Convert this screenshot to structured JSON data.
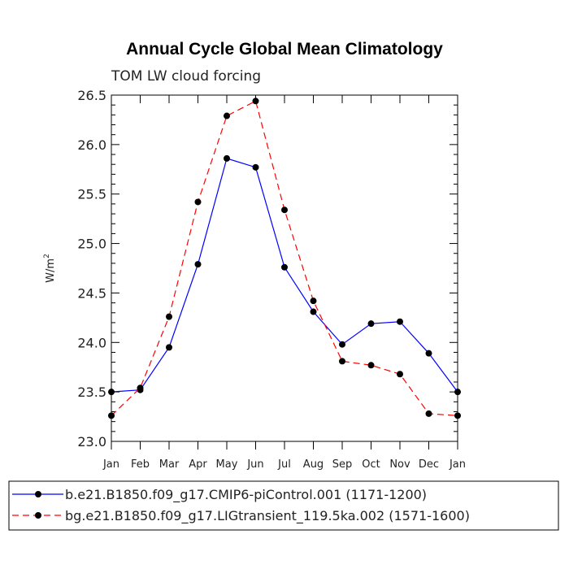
{
  "chart_data": {
    "type": "line",
    "title": "Annual Cycle Global Mean Climatology",
    "subtitle": "TOM LW cloud forcing",
    "ylabel": "W/m",
    "ylabel_superscript": "2",
    "xlabel": "",
    "categories": [
      "Jan",
      "Feb",
      "Mar",
      "Apr",
      "May",
      "Jun",
      "Jul",
      "Aug",
      "Sep",
      "Oct",
      "Nov",
      "Dec",
      "Jan"
    ],
    "ylim": [
      23.0,
      26.5
    ],
    "yticks": [
      "23.0",
      "23.5",
      "24.0",
      "24.5",
      "25.0",
      "25.5",
      "26.0",
      "26.5"
    ],
    "series": [
      {
        "name": "b.e21.B1850.f09_g17.CMIP6-piControl.001 (1171-1200)",
        "color": "#0000ff",
        "dash": "solid",
        "values": [
          23.5,
          23.52,
          23.95,
          24.79,
          25.86,
          25.77,
          24.76,
          24.31,
          23.98,
          24.19,
          24.21,
          23.89,
          23.5
        ]
      },
      {
        "name": "bg.e21.B1850.f09_g17.LIGtransient_119.5ka.002 (1571-1600)",
        "color": "#ff0000",
        "dash": "dashed",
        "values": [
          23.26,
          23.54,
          24.26,
          25.42,
          26.29,
          26.44,
          25.34,
          24.42,
          23.81,
          23.77,
          23.68,
          23.28,
          23.26
        ]
      }
    ],
    "legend_position": "bottom"
  }
}
